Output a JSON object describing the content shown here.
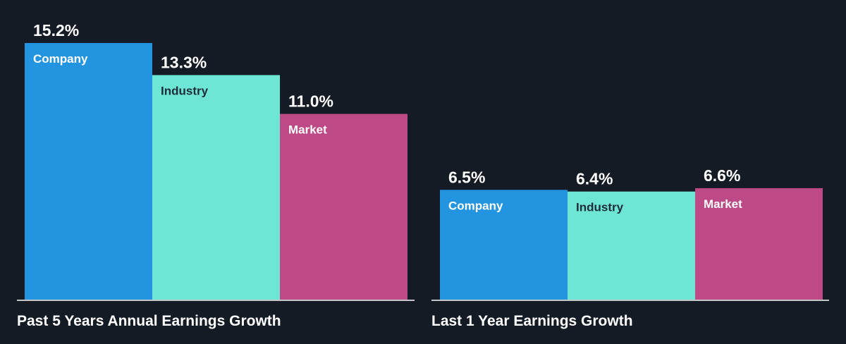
{
  "colors": {
    "background": "#151b24",
    "axis": "#ffffff",
    "label_on_dark": "#ffffff",
    "label_on_light": "#1f2b3a"
  },
  "chart_data": [
    {
      "type": "bar",
      "title": "Past 5 Years Annual Earnings Growth",
      "categories": [
        "Company",
        "Industry",
        "Market"
      ],
      "values": [
        15.2,
        13.3,
        11.0
      ],
      "value_labels": [
        "15.2%",
        "13.3%",
        "11.0%"
      ],
      "colors": [
        "#2394e0",
        "#6de6d5",
        "#bd4986"
      ],
      "ylim": [
        0,
        15.2
      ],
      "grid": false,
      "legend": "none"
    },
    {
      "type": "bar",
      "title": "Last 1 Year Earnings Growth",
      "categories": [
        "Company",
        "Industry",
        "Market"
      ],
      "values": [
        6.5,
        6.4,
        6.6
      ],
      "value_labels": [
        "6.5%",
        "6.4%",
        "6.6%"
      ],
      "colors": [
        "#2394e0",
        "#6de6d5",
        "#bd4986"
      ],
      "ylim": [
        0,
        15.2
      ],
      "grid": false,
      "legend": "none"
    }
  ]
}
